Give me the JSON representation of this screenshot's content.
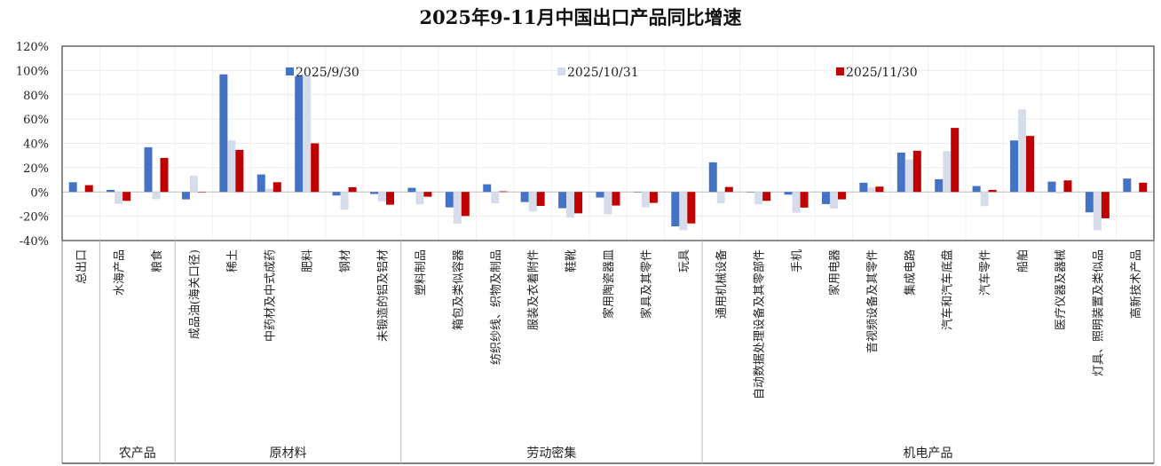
{
  "chart_data": {
    "type": "bar",
    "title": "2025年9-11月中国出口产品同比增速",
    "xlabel": "",
    "ylabel": "",
    "ylim": [
      -40,
      120
    ],
    "yticks": [
      "120%",
      "100%",
      "80%",
      "60%",
      "40%",
      "20%",
      "0%",
      "-20%",
      "-40%"
    ],
    "ytick_values": [
      120,
      100,
      80,
      60,
      40,
      20,
      0,
      -20,
      -40
    ],
    "grid": true,
    "legend_position": "top",
    "categories": [
      "总出口",
      "水海产品",
      "粮食",
      "成品油(海关口径)",
      "稀土",
      "中药材及中式成药",
      "肥料",
      "钢材",
      "未锻造的铝及铝材",
      "塑料制品",
      "箱包及类似容器",
      "纺织纱线、织物及制品",
      "服装及衣着附件",
      "鞋靴",
      "家用陶瓷器皿",
      "家具及其零件",
      "玩具",
      "通用机械设备",
      "自动数据处理设备及其零部件",
      "手机",
      "家用电器",
      "音视频设备及其零件",
      "集成电路",
      "汽车和汽车底盘",
      "汽车零件",
      "船舶",
      "医疗仪器及器械",
      "灯具、照明装置及类似品",
      "高新技术产品"
    ],
    "groups": [
      {
        "label": "农产品",
        "start": 1,
        "end": 2
      },
      {
        "label": "原材料",
        "start": 3,
        "end": 8
      },
      {
        "label": "劳动密集",
        "start": 9,
        "end": 16
      },
      {
        "label": "机电产品",
        "start": 17,
        "end": 28
      }
    ],
    "series": [
      {
        "name": "2025/9/30",
        "color": "#4472C4",
        "values": [
          8.0,
          1.7,
          36.8,
          -6.1,
          96.8,
          14.4,
          95.1,
          -2.9,
          -1.7,
          3.4,
          -12.7,
          6.3,
          -8.3,
          -13.4,
          -4.6,
          0.0,
          -28.3,
          24.4,
          0.0,
          -2.2,
          -10.0,
          7.6,
          32.4,
          10.5,
          4.9,
          42.4,
          8.5,
          -16.8,
          11.0
        ]
      },
      {
        "name": "2025/10/31",
        "color": "#D6DCE9",
        "values": [
          -0.5,
          -9.8,
          -5.9,
          13.4,
          42.4,
          2.7,
          95.8,
          -14.6,
          -7.8,
          -10.2,
          -26.1,
          -9.3,
          -16.1,
          -21.2,
          -18.5,
          -12.7,
          -31.5,
          -9.3,
          -10.2,
          -17.1,
          -13.7,
          3.7,
          26.8,
          33.7,
          -11.7,
          68.0,
          -1.2,
          -31.5,
          0.3
        ]
      },
      {
        "name": "2025/11/30",
        "color": "#C00000",
        "values": [
          5.6,
          -7.3,
          28.0,
          0.0,
          34.6,
          8.0,
          40.0,
          3.9,
          -10.5,
          -3.9,
          -19.8,
          0.5,
          -11.5,
          -17.6,
          -11.2,
          -9.0,
          -25.9,
          4.1,
          -7.3,
          -12.9,
          -6.1,
          4.4,
          33.9,
          52.7,
          1.7,
          46.1,
          9.5,
          -21.7,
          7.6
        ]
      }
    ]
  }
}
